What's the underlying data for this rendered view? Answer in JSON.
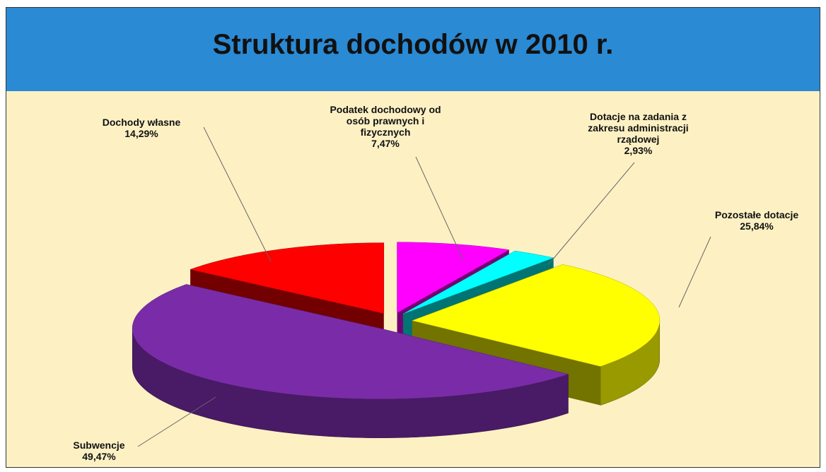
{
  "chart_data": {
    "type": "pie",
    "title": "Struktura dochodów w 2010 r.",
    "categories": [
      "Podatek dochodowy od osób prawnych i fizycznych",
      "Dotacje na zadania z zakresu administracji rządowej",
      "Pozostałe dotacje",
      "Subwencje",
      "Dochody własne"
    ],
    "values": [
      7.47,
      2.93,
      25.84,
      49.47,
      14.29
    ],
    "value_labels": [
      "7,47%",
      "2,93%",
      "25,84%",
      "49,47%",
      "14,29%"
    ],
    "colors": [
      "#ff00ff",
      "#00ffff",
      "#ffff00",
      "#7a2ca8",
      "#ff0000"
    ]
  }
}
